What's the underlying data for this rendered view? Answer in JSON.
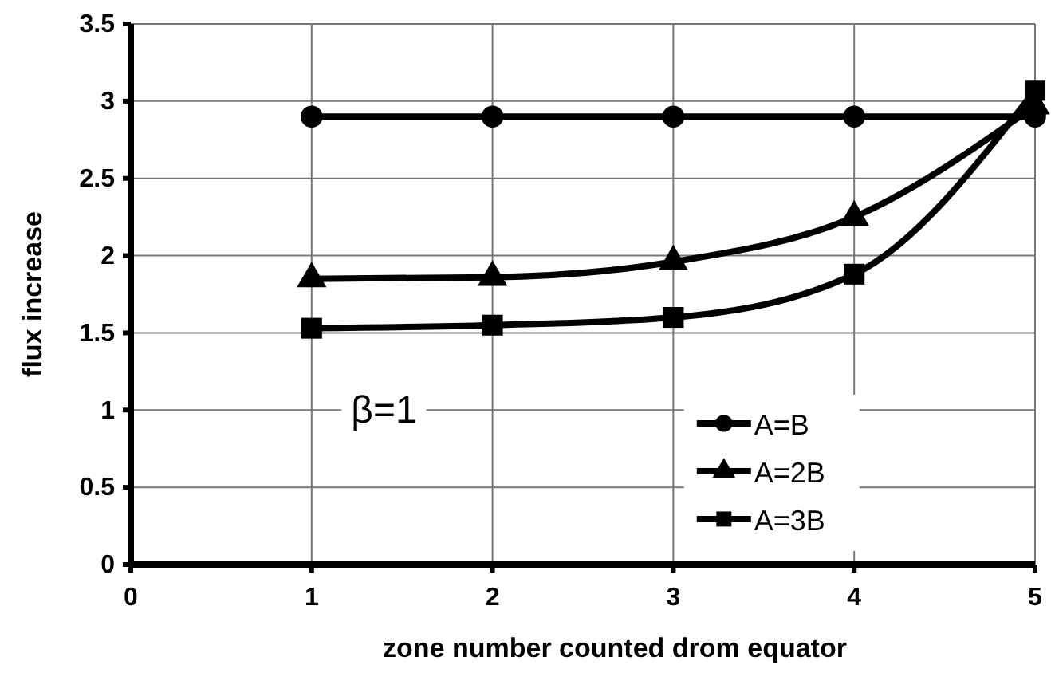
{
  "chart_data": {
    "type": "line",
    "xlabel": "zone number counted drom equator",
    "ylabel": "flux increase",
    "x": [
      1,
      2,
      3,
      4,
      5
    ],
    "series": [
      {
        "name": "A=B",
        "color": "#000000",
        "marker": "circle",
        "values": [
          2.9,
          2.9,
          2.9,
          2.9,
          2.9
        ]
      },
      {
        "name": "A=2B",
        "color": "#000000",
        "marker": "triangle",
        "values": [
          1.85,
          1.86,
          1.96,
          2.25,
          2.97
        ]
      },
      {
        "name": "A=3B",
        "color": "#000000",
        "marker": "square",
        "values": [
          1.53,
          1.55,
          1.6,
          1.88,
          3.07
        ]
      }
    ],
    "xlim": [
      0,
      5
    ],
    "xticks": [
      0,
      1,
      2,
      3,
      4,
      5
    ],
    "ylim": [
      0,
      3.5
    ],
    "yticks": [
      0,
      0.5,
      1,
      1.5,
      2,
      2.5,
      3,
      3.5
    ],
    "grid": true,
    "legend": "bottom right",
    "line_style": "solid",
    "annotations": [
      "β=1"
    ]
  }
}
